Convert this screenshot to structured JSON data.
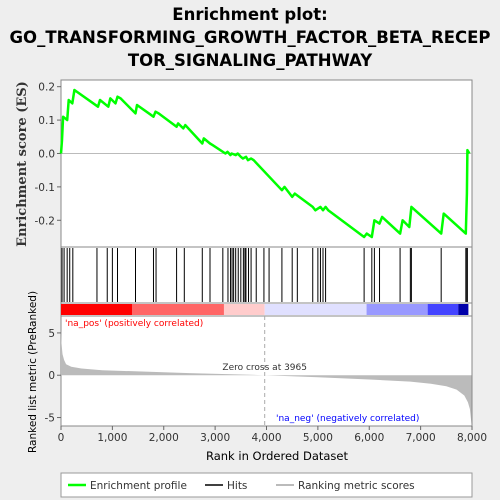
{
  "title_lines": [
    "Enrichment plot:",
    "GO_TRANSFORMING_GROWTH_FACTOR_BETA_RECEP",
    "TOR_SIGNALING_PATHWAY"
  ],
  "chart_data": {
    "type": "line",
    "title": "Enrichment plot: GO_TRANSFORMING_GROWTH_FACTOR_BETA_RECEPTOR_SIGNALING_PATHWAY",
    "top_panel": {
      "ylabel": "Enrichment score (ES)",
      "ylim": [
        -0.28,
        0.22
      ],
      "yticks": [
        0.2,
        0.1,
        0.0,
        -0.1,
        -0.2
      ],
      "ytick_labels": [
        "0.2",
        "0.1",
        "0.0",
        "-0.1",
        "-0.2"
      ],
      "series": [
        {
          "name": "Enrichment profile",
          "color": "#00ff00",
          "x": [
            0,
            20,
            40,
            120,
            150,
            220,
            260,
            720,
            760,
            920,
            960,
            1060,
            1100,
            1160,
            1450,
            1480,
            1800,
            1840,
            1900,
            2250,
            2280,
            2380,
            2420,
            2750,
            2780,
            2900,
            2950,
            3200,
            3240,
            3300,
            3320,
            3400,
            3440,
            3500,
            3540,
            3600,
            3640,
            3700,
            3750,
            4300,
            4350,
            4500,
            4550,
            4900,
            4950,
            5050,
            5100,
            5150,
            5200,
            5900,
            5950,
            6050,
            6100,
            6200,
            6250,
            6600,
            6650,
            6780,
            6820,
            7400,
            7450,
            7880,
            7900,
            7910,
            7950
          ],
          "y": [
            0.0,
            0.04,
            0.11,
            0.1,
            0.16,
            0.15,
            0.19,
            0.14,
            0.16,
            0.14,
            0.165,
            0.15,
            0.17,
            0.165,
            0.12,
            0.145,
            0.11,
            0.125,
            0.12,
            0.08,
            0.09,
            0.075,
            0.085,
            0.03,
            0.045,
            0.03,
            0.025,
            0.0,
            0.005,
            -0.005,
            0.0,
            -0.005,
            0.0,
            -0.01,
            -0.015,
            -0.01,
            -0.02,
            -0.015,
            -0.02,
            -0.11,
            -0.1,
            -0.13,
            -0.12,
            -0.16,
            -0.17,
            -0.16,
            -0.17,
            -0.16,
            -0.17,
            -0.25,
            -0.24,
            -0.25,
            -0.2,
            -0.21,
            -0.19,
            -0.24,
            -0.2,
            -0.22,
            -0.16,
            -0.24,
            -0.18,
            -0.24,
            -0.12,
            0.01,
            0.0
          ]
        }
      ]
    },
    "hits": [
      20,
      60,
      120,
      170,
      230,
      700,
      900,
      1000,
      1100,
      1450,
      1800,
      1850,
      2250,
      2400,
      2750,
      2900,
      3150,
      3250,
      3300,
      3330,
      3360,
      3400,
      3450,
      3500,
      3550,
      3580,
      3600,
      3650,
      3700,
      3800,
      3950,
      4050,
      4300,
      4500,
      4600,
      4900,
      5000,
      5050,
      5100,
      5150,
      5900,
      6050,
      6100,
      6200,
      6600,
      6800,
      6820,
      7400,
      7880,
      7900,
      7910
    ],
    "middle_panel": {
      "colors": [
        "#ff0000",
        "#ff6666",
        "#ffcccc",
        "#e0e0ff",
        "#9999ff",
        "#4444ff",
        "#0000aa"
      ]
    },
    "bottom_panel": {
      "ylabel": "Ranked list metric (PreRanked)",
      "xlabel": "Rank in Ordered Dataset",
      "xlim": [
        0,
        8000
      ],
      "xticks": [
        0,
        1000,
        2000,
        3000,
        4000,
        5000,
        6000,
        7000,
        8000
      ],
      "xtick_labels": [
        "0",
        "1,000",
        "2,000",
        "3,000",
        "4,000",
        "5,000",
        "6,000",
        "7,000",
        "8,000"
      ],
      "ylim": [
        -6,
        7
      ],
      "yticks": [
        5,
        0,
        -5
      ],
      "ytick_labels": [
        "5",
        "0",
        "-5"
      ],
      "metric_curve": {
        "x": [
          0,
          10,
          30,
          60,
          100,
          200,
          400,
          800,
          1500,
          2500,
          3965,
          5000,
          6000,
          6800,
          7200,
          7500,
          7700,
          7850,
          7920,
          7960,
          7990
        ],
        "y": [
          5.4,
          3.8,
          2.5,
          1.8,
          1.3,
          1.0,
          0.8,
          0.6,
          0.45,
          0.25,
          0.0,
          -0.25,
          -0.5,
          -0.75,
          -1.0,
          -1.3,
          -1.7,
          -2.4,
          -3.2,
          -4.0,
          -5.8
        ]
      },
      "zero_cross_label": "Zero cross at 3965",
      "zero_cross_x": 3965,
      "pos_label": "'na_pos' (positively correlated)",
      "neg_label": "'na_neg' (negatively correlated)",
      "pos_color": "#ff0000",
      "neg_color": "#0000ff"
    },
    "legend": [
      {
        "label": "Enrichment profile",
        "color": "#00ff00"
      },
      {
        "label": "Hits",
        "color": "#000000"
      },
      {
        "label": "Ranking metric scores",
        "color": "#bbbbbb"
      }
    ]
  }
}
